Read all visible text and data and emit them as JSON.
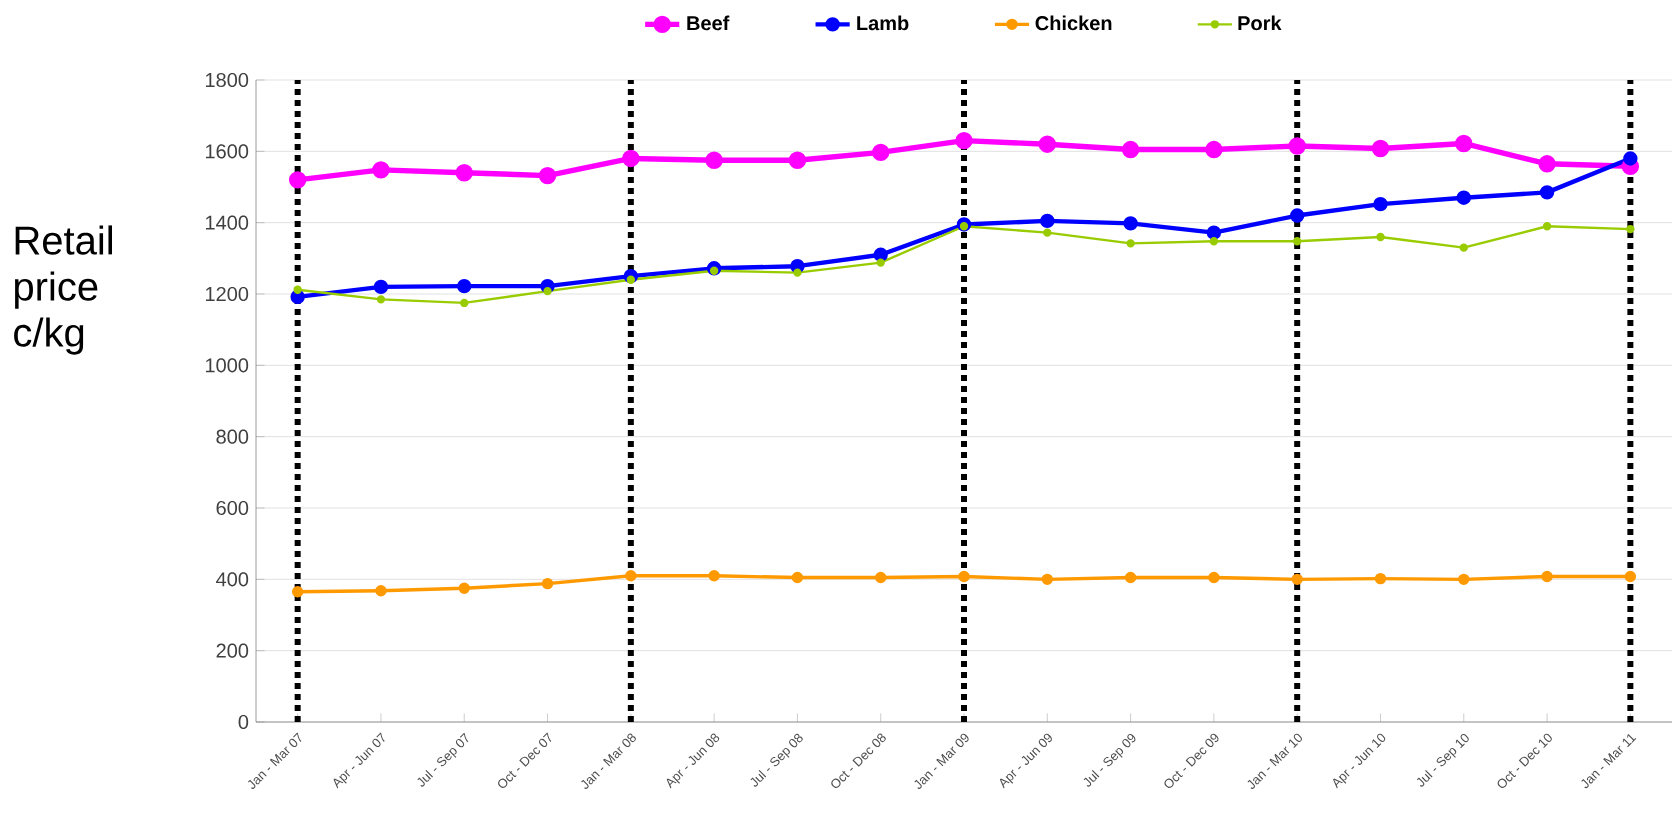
{
  "chart_data": {
    "type": "line",
    "ylabel": "Retail price c/kg",
    "categories": [
      "Jan - Mar 07",
      "Apr - Jun 07",
      "Jul - Sep 07",
      "Oct - Dec 07",
      "Jan - Mar 08",
      "Apr - Jun 08",
      "Jul - Sep 08",
      "Oct - Dec 08",
      "Jan - Mar 09",
      "Apr - Jun 09",
      "Jul - Sep 09",
      "Oct - Dec 09",
      "Jan - Mar 10",
      "Apr - Jun 10",
      "Jul - Sep 10",
      "Oct - Dec 10",
      "Jan - Mar 11"
    ],
    "series": [
      {
        "name": "Beef",
        "color": "#ff00ff",
        "values": [
          1520,
          1548,
          1540,
          1532,
          1580,
          1575,
          1575,
          1597,
          1630,
          1620,
          1605,
          1605,
          1615,
          1608,
          1622,
          1565,
          1558
        ]
      },
      {
        "name": "Lamb",
        "color": "#0000ff",
        "values": [
          1192,
          1220,
          1222,
          1222,
          1250,
          1272,
          1278,
          1310,
          1395,
          1405,
          1398,
          1372,
          1420,
          1452,
          1470,
          1485,
          1580
        ]
      },
      {
        "name": "Chicken",
        "color": "#ff9900",
        "values": [
          365,
          368,
          375,
          388,
          410,
          410,
          405,
          405,
          408,
          400,
          405,
          405,
          400,
          402,
          400,
          408,
          408
        ]
      },
      {
        "name": "Pork",
        "color": "#99cc00",
        "values": [
          1212,
          1185,
          1175,
          1208,
          1240,
          1265,
          1260,
          1288,
          1390,
          1372,
          1342,
          1348,
          1348,
          1360,
          1330,
          1390,
          1382
        ]
      }
    ],
    "ylim": [
      0,
      1800
    ],
    "yticks": [
      0,
      200,
      400,
      600,
      800,
      1000,
      1200,
      1400,
      1600,
      1800
    ],
    "ref_lines": [
      {
        "axis": "x",
        "value": "Jan - Mar 07",
        "color": "#000000",
        "line_style": "dotted"
      },
      {
        "axis": "x",
        "value": "Jan - Mar 08",
        "color": "#000000",
        "line_style": "dotted"
      },
      {
        "axis": "x",
        "value": "Jan - Mar 09",
        "color": "#000000",
        "line_style": "dotted"
      },
      {
        "axis": "x",
        "value": "Jan - Mar 10",
        "color": "#000000",
        "line_style": "dotted"
      },
      {
        "axis": "x",
        "value": "Jan - Mar 11",
        "color": "#000000",
        "line_style": "dotted"
      }
    ],
    "grid": "y",
    "legend": "top",
    "marker": "circle",
    "line_style": "solid"
  }
}
